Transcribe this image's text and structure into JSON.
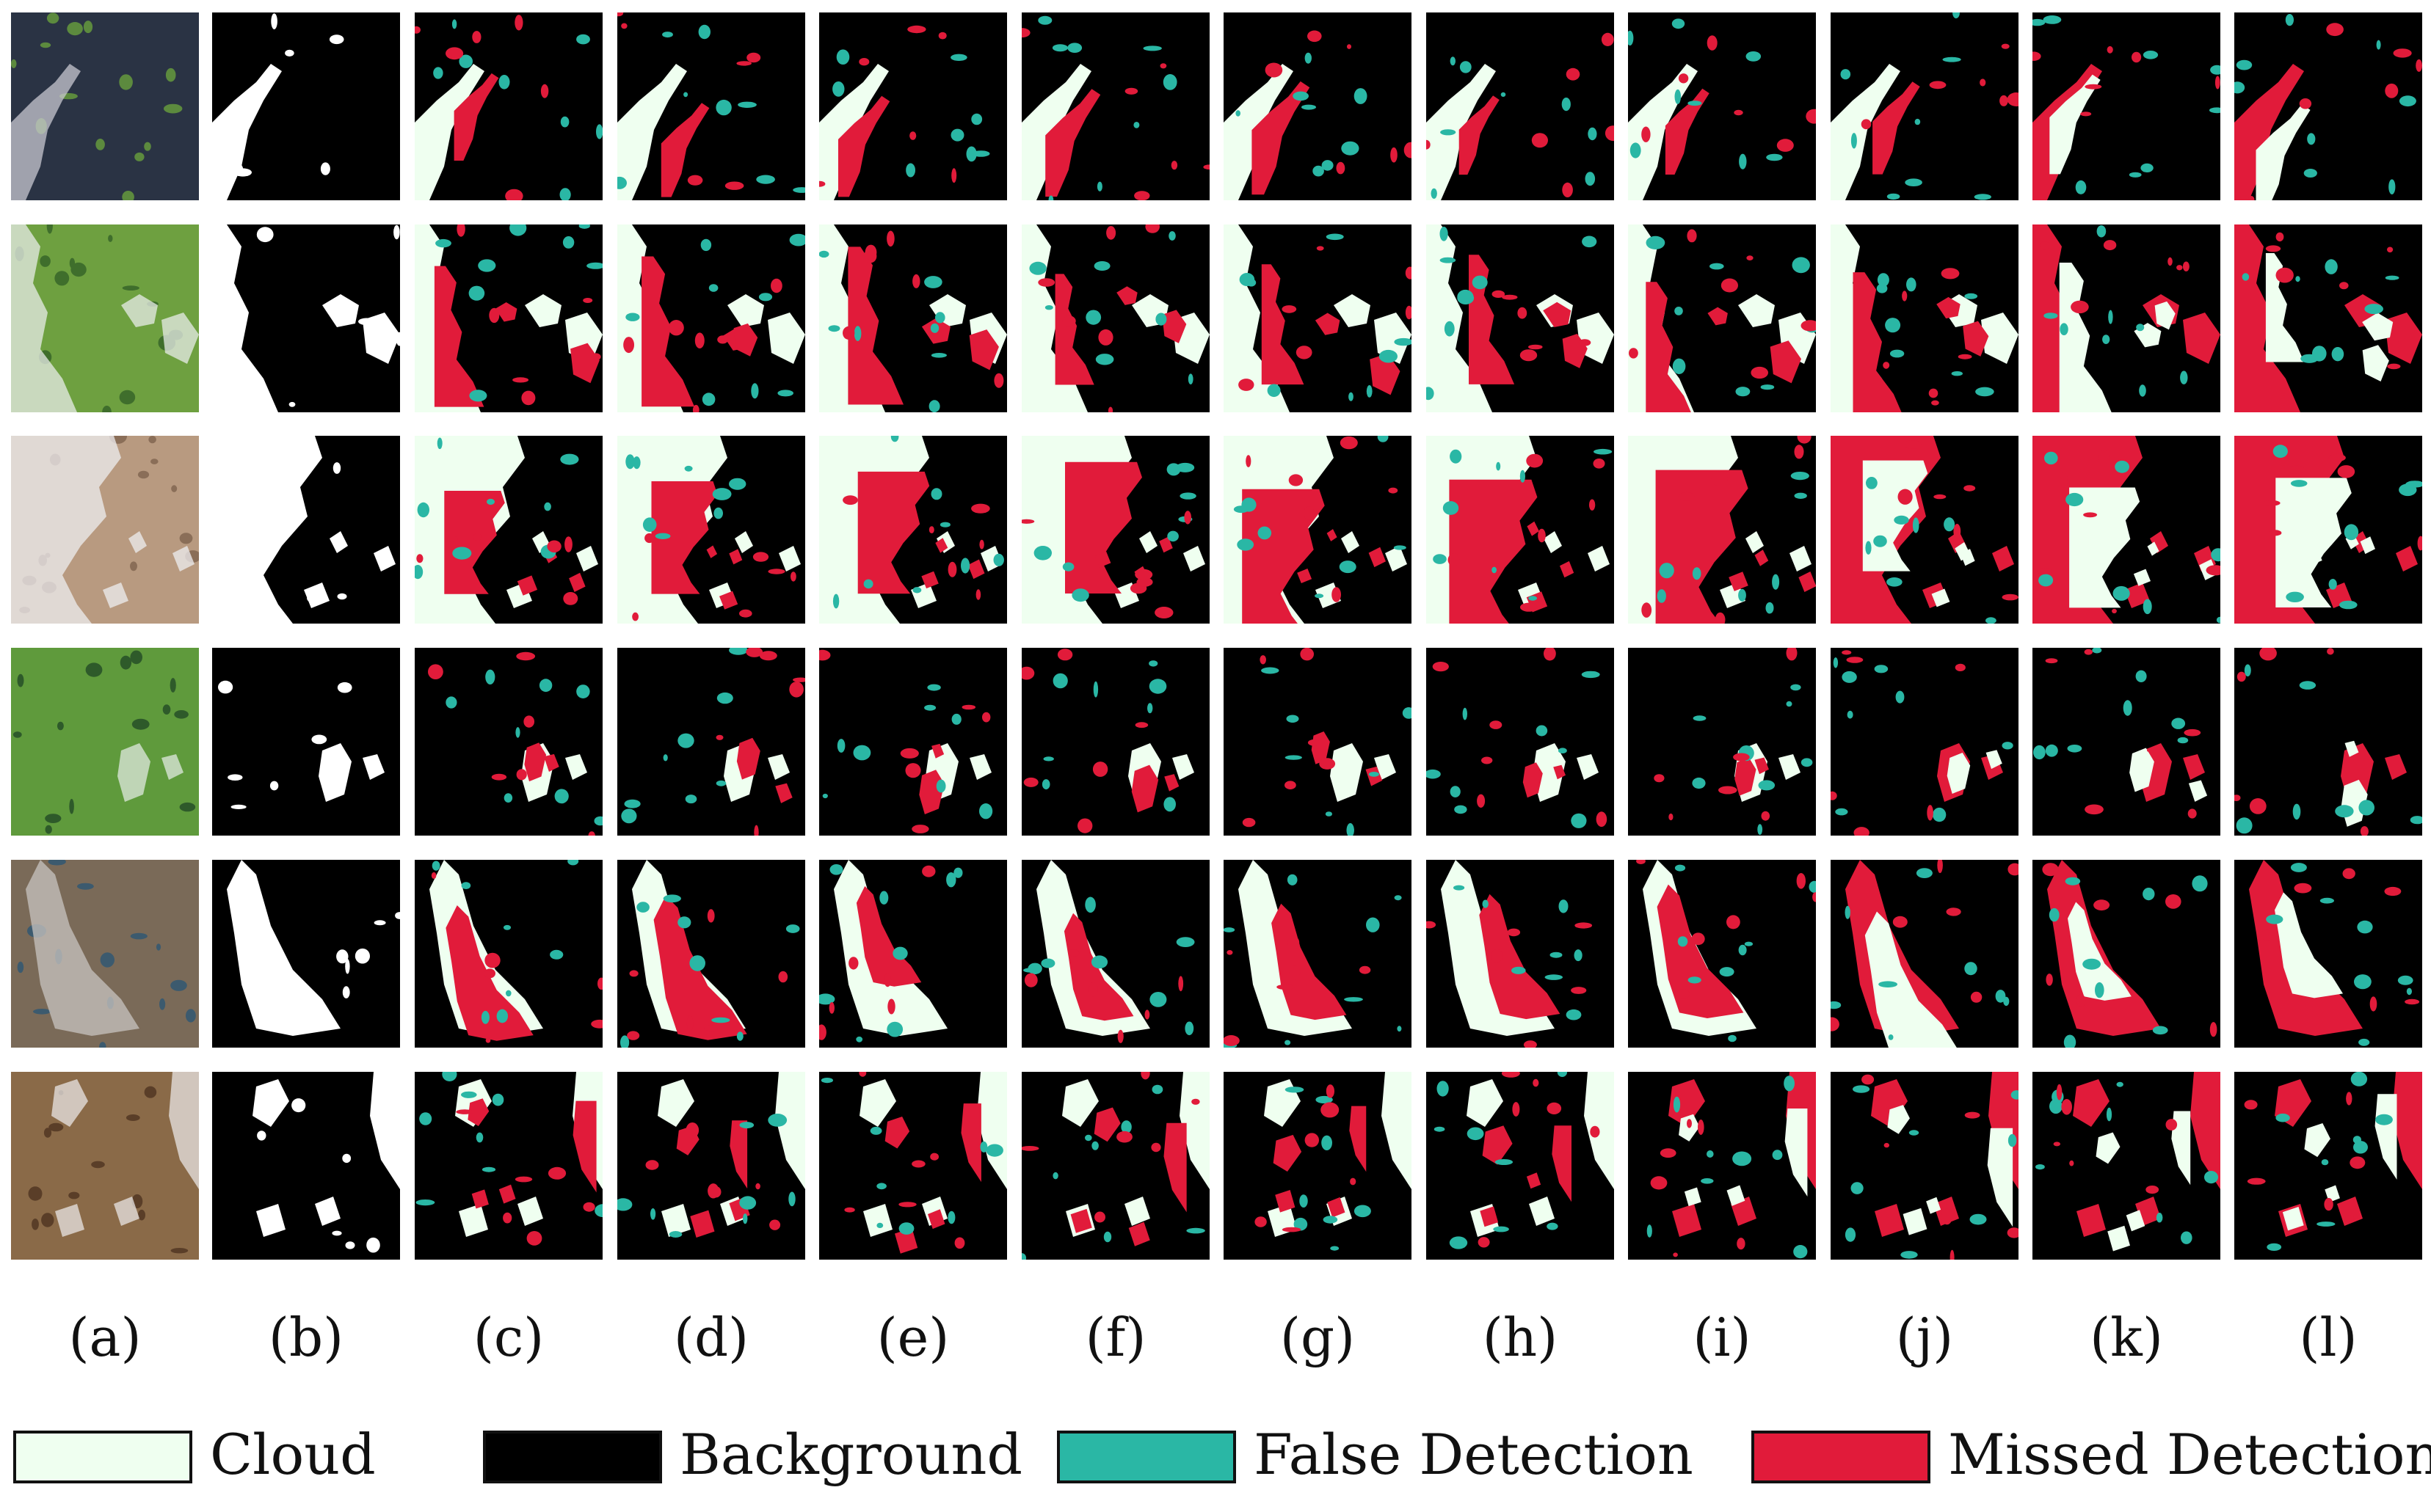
{
  "figure": {
    "column_labels": [
      "(a)",
      "(b)",
      "(c)",
      "(d)",
      "(e)",
      "(f)",
      "(g)",
      "(h)",
      "(i)",
      "(j)",
      "(k)",
      "(l)"
    ],
    "rows": 6
  },
  "legend": {
    "items": [
      {
        "label": "Cloud",
        "color": "#effff0"
      },
      {
        "label": "Background",
        "color": "#000000"
      },
      {
        "label": "False Detection",
        "color": "#2ab7a5"
      },
      {
        "label": "Missed Detection",
        "color": "#e11b3a"
      }
    ]
  },
  "colors": {
    "cloud": "#effff0",
    "background": "#000000",
    "false_detection": "#2ab7a5",
    "missed_detection": "#e11b3a",
    "mask_cloud": "#ffffff"
  }
}
